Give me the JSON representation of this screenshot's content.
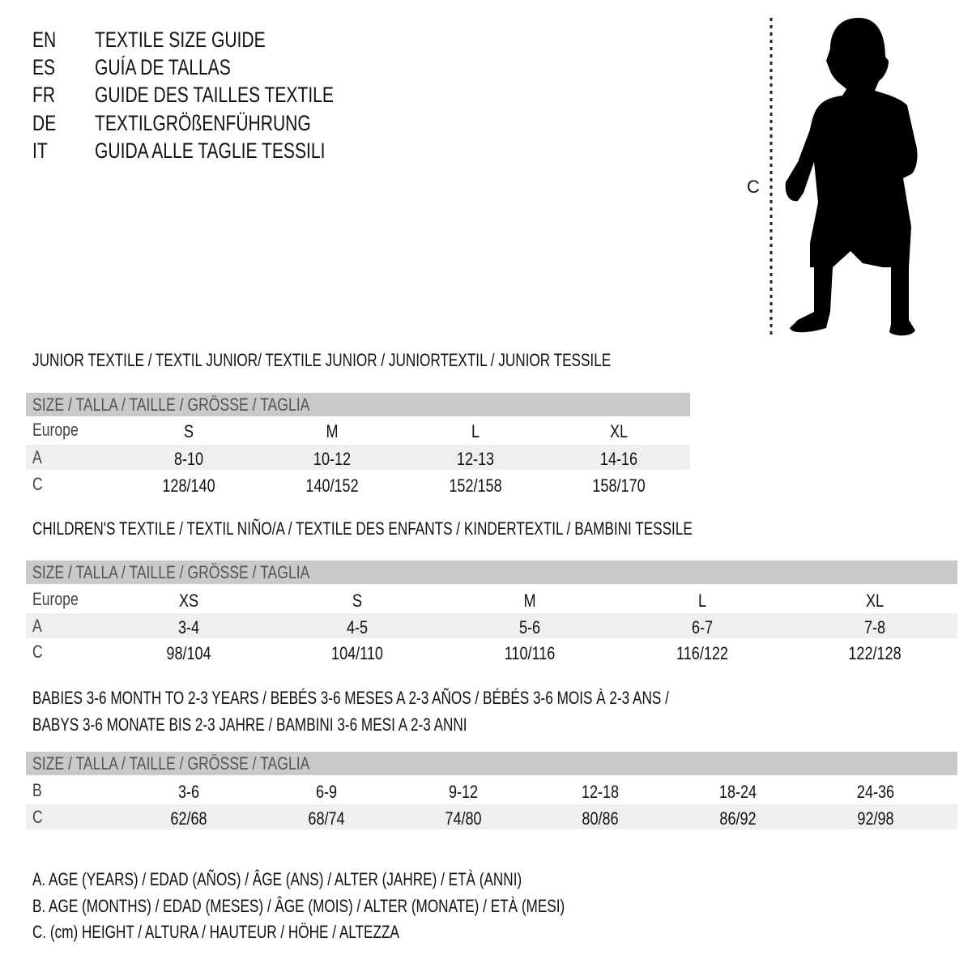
{
  "title_lines": [
    {
      "code": "EN",
      "text": "TEXTILE SIZE GUIDE"
    },
    {
      "code": "ES",
      "text": "GUÍA DE TALLAS"
    },
    {
      "code": "FR",
      "text": "GUIDE DES TAILLES TEXTILE"
    },
    {
      "code": "DE",
      "text": "TEXTILGRÖßENFÜHRUNG"
    },
    {
      "code": "IT",
      "text": "GUIDA ALLE TAGLIE TESSILI"
    }
  ],
  "figure": {
    "height_label": "C",
    "icon": "child-silhouette-icon"
  },
  "colors": {
    "header_bar": "#c9c9c9",
    "stripe": "#efefef",
    "text": "#111111"
  },
  "sections": [
    {
      "heading": [
        "JUNIOR TEXTILE / TEXTIL JUNIOR/ TEXTILE JUNIOR / JUNIORTEXTIL / JUNIOR TESSILE"
      ],
      "header": "SIZE / TALLA / TAILLE / GRÖSSE / TAGLIA",
      "rows": [
        {
          "label": "Europe",
          "values": [
            "S",
            "M",
            "L",
            "XL"
          ]
        },
        {
          "label": "A",
          "values": [
            "8-10",
            "10-12",
            "12-13",
            "14-16"
          ]
        },
        {
          "label": "C",
          "values": [
            "128/140",
            "140/152",
            "152/158",
            "158/170"
          ]
        }
      ]
    },
    {
      "heading": [
        "CHILDREN'S TEXTILE / TEXTIL NIÑO/A / TEXTILE DES ENFANTS / KINDERTEXTIL / BAMBINI TESSILE"
      ],
      "header": "SIZE / TALLA / TAILLE / GRÖSSE / TAGLIA",
      "rows": [
        {
          "label": "Europe",
          "values": [
            "XS",
            "S",
            "M",
            "L",
            "XL"
          ]
        },
        {
          "label": "A",
          "values": [
            "3-4",
            "4-5",
            "5-6",
            "6-7",
            "7-8"
          ]
        },
        {
          "label": "C",
          "values": [
            "98/104",
            "104/110",
            "110/116",
            "116/122",
            "122/128"
          ]
        }
      ]
    },
    {
      "heading": [
        "BABIES 3-6 MONTH TO 2-3 YEARS / BEBÉS 3-6 MESES A 2-3 AÑOS / BÉBÉS 3-6 MOIS À 2-3 ANS /",
        "BABYS 3-6 MONATE BIS 2-3 JAHRE / BAMBINI 3-6 MESI A 2-3 ANNI"
      ],
      "header": "SIZE / TALLA / TAILLE / GRÖSSE / TAGLIA",
      "rows": [
        {
          "label": "B",
          "values": [
            "3-6",
            "6-9",
            "9-12",
            "12-18",
            "18-24",
            "24-36"
          ]
        },
        {
          "label": "C",
          "values": [
            "62/68",
            "68/74",
            "74/80",
            "80/86",
            "86/92",
            "92/98"
          ]
        }
      ]
    }
  ],
  "legend": [
    "A. AGE (YEARS) / EDAD (AÑOS) / ÂGE (ANS) / ALTER (JAHRE) / ETÀ (ANNI)",
    "B. AGE (MONTHS) / EDAD (MESES) / ÂGE (MOIS) / ALTER (MONATE) / ETÀ (MESI)",
    "C. (cm) HEIGHT / ALTURA / HAUTEUR / HÖHE / ALTEZZA"
  ]
}
